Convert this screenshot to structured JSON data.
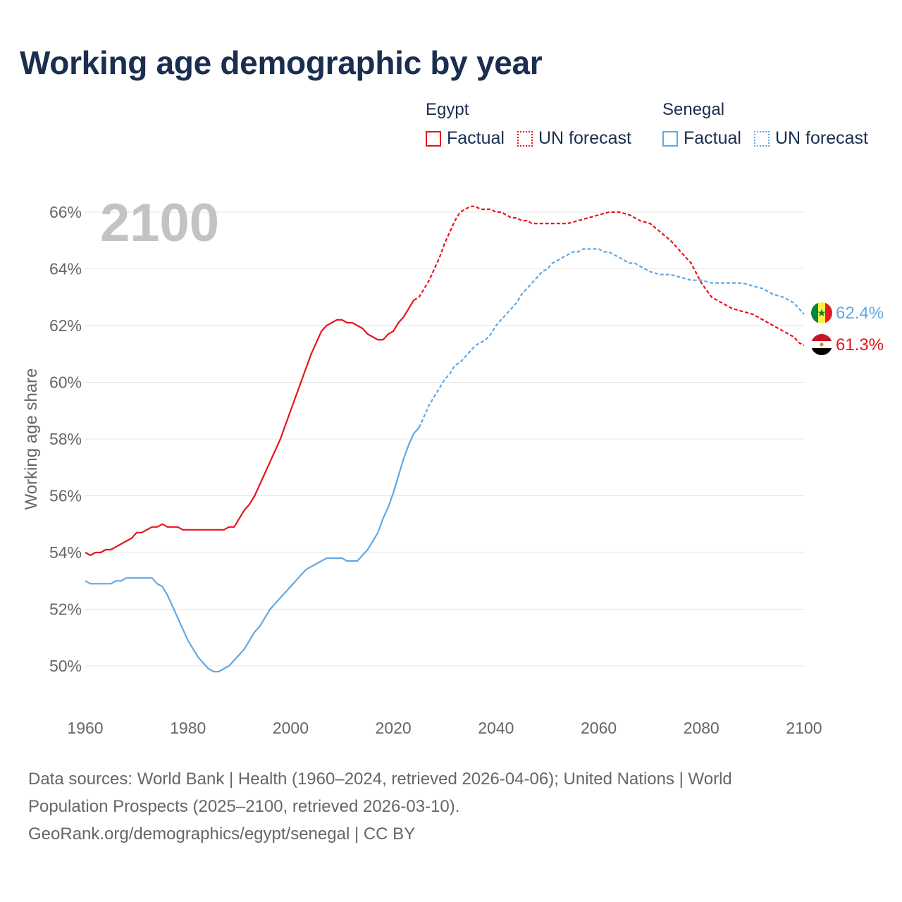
{
  "title": "Working age demographic by year",
  "legend": {
    "groups": [
      {
        "name": "Egypt",
        "color": "#e8141c",
        "factual_label": "Factual",
        "forecast_label": "UN forecast"
      },
      {
        "name": "Senegal",
        "color": "#62a8e5",
        "factual_label": "Factual",
        "forecast_label": "UN forecast"
      }
    ]
  },
  "year_watermark": "2100",
  "end_labels": {
    "egypt": "61.3%",
    "senegal": "62.4%"
  },
  "flags": {
    "egypt": "egypt-flag-icon",
    "senegal": "senegal-flag-icon"
  },
  "source": {
    "line1": "Data sources: World Bank | Health (1960–2024, retrieved 2026-04-06); United Nations | World",
    "line2": "Population Prospects (2025–2100, retrieved 2026-03-10).",
    "line3": "GeoRank.org/demographics/egypt/senegal | CC BY"
  },
  "chart_data": {
    "type": "line",
    "title": "Working age demographic by year",
    "xlabel": "",
    "ylabel": "Working age share",
    "xlim": [
      1960,
      2100
    ],
    "ylim": [
      49,
      67
    ],
    "x_ticks": [
      1960,
      1980,
      2000,
      2020,
      2040,
      2060,
      2080,
      2100
    ],
    "y_ticks": [
      50,
      52,
      54,
      56,
      58,
      60,
      62,
      64,
      66
    ],
    "y_tick_labels": [
      "50%",
      "52%",
      "54%",
      "56%",
      "58%",
      "60%",
      "62%",
      "64%",
      "66%"
    ],
    "grid": true,
    "series": [
      {
        "name": "Egypt",
        "kind": "Factual",
        "color": "#e8141c",
        "dash": "solid",
        "points": [
          [
            1960,
            54.0
          ],
          [
            1961,
            53.9
          ],
          [
            1962,
            54.0
          ],
          [
            1963,
            54.0
          ],
          [
            1964,
            54.1
          ],
          [
            1965,
            54.1
          ],
          [
            1966,
            54.2
          ],
          [
            1967,
            54.3
          ],
          [
            1968,
            54.4
          ],
          [
            1969,
            54.5
          ],
          [
            1970,
            54.7
          ],
          [
            1971,
            54.7
          ],
          [
            1972,
            54.8
          ],
          [
            1973,
            54.9
          ],
          [
            1974,
            54.9
          ],
          [
            1975,
            55.0
          ],
          [
            1976,
            54.9
          ],
          [
            1977,
            54.9
          ],
          [
            1978,
            54.9
          ],
          [
            1979,
            54.8
          ],
          [
            1980,
            54.8
          ],
          [
            1981,
            54.8
          ],
          [
            1982,
            54.8
          ],
          [
            1983,
            54.8
          ],
          [
            1984,
            54.8
          ],
          [
            1985,
            54.8
          ],
          [
            1986,
            54.8
          ],
          [
            1987,
            54.8
          ],
          [
            1988,
            54.9
          ],
          [
            1989,
            54.9
          ],
          [
            1990,
            55.2
          ],
          [
            1991,
            55.5
          ],
          [
            1992,
            55.7
          ],
          [
            1993,
            56.0
          ],
          [
            1994,
            56.4
          ],
          [
            1995,
            56.8
          ],
          [
            1996,
            57.2
          ],
          [
            1997,
            57.6
          ],
          [
            1998,
            58.0
          ],
          [
            1999,
            58.5
          ],
          [
            2000,
            59.0
          ],
          [
            2001,
            59.5
          ],
          [
            2002,
            60.0
          ],
          [
            2003,
            60.5
          ],
          [
            2004,
            61.0
          ],
          [
            2005,
            61.4
          ],
          [
            2006,
            61.8
          ],
          [
            2007,
            62.0
          ],
          [
            2008,
            62.1
          ],
          [
            2009,
            62.2
          ],
          [
            2010,
            62.2
          ],
          [
            2011,
            62.1
          ],
          [
            2012,
            62.1
          ],
          [
            2013,
            62.0
          ],
          [
            2014,
            61.9
          ],
          [
            2015,
            61.7
          ],
          [
            2016,
            61.6
          ],
          [
            2017,
            61.5
          ],
          [
            2018,
            61.5
          ],
          [
            2019,
            61.7
          ],
          [
            2020,
            61.8
          ],
          [
            2021,
            62.1
          ],
          [
            2022,
            62.3
          ],
          [
            2023,
            62.6
          ],
          [
            2024,
            62.9
          ]
        ]
      },
      {
        "name": "Egypt",
        "kind": "UN forecast",
        "color": "#e8141c",
        "dash": "dashed",
        "points": [
          [
            2024,
            62.9
          ],
          [
            2025,
            63.0
          ],
          [
            2026,
            63.3
          ],
          [
            2027,
            63.6
          ],
          [
            2028,
            64.0
          ],
          [
            2029,
            64.4
          ],
          [
            2030,
            64.9
          ],
          [
            2031,
            65.3
          ],
          [
            2032,
            65.7
          ],
          [
            2033,
            66.0
          ],
          [
            2034,
            66.1
          ],
          [
            2035,
            66.2
          ],
          [
            2036,
            66.2
          ],
          [
            2037,
            66.1
          ],
          [
            2038,
            66.1
          ],
          [
            2039,
            66.1
          ],
          [
            2040,
            66.0
          ],
          [
            2041,
            66.0
          ],
          [
            2042,
            65.9
          ],
          [
            2043,
            65.8
          ],
          [
            2044,
            65.8
          ],
          [
            2045,
            65.7
          ],
          [
            2046,
            65.7
          ],
          [
            2047,
            65.6
          ],
          [
            2048,
            65.6
          ],
          [
            2050,
            65.6
          ],
          [
            2052,
            65.6
          ],
          [
            2054,
            65.6
          ],
          [
            2056,
            65.7
          ],
          [
            2058,
            65.8
          ],
          [
            2060,
            65.9
          ],
          [
            2062,
            66.0
          ],
          [
            2064,
            66.0
          ],
          [
            2066,
            65.9
          ],
          [
            2068,
            65.7
          ],
          [
            2070,
            65.6
          ],
          [
            2072,
            65.3
          ],
          [
            2074,
            65.0
          ],
          [
            2076,
            64.6
          ],
          [
            2078,
            64.2
          ],
          [
            2080,
            63.5
          ],
          [
            2082,
            63.0
          ],
          [
            2084,
            62.8
          ],
          [
            2086,
            62.6
          ],
          [
            2088,
            62.5
          ],
          [
            2090,
            62.4
          ],
          [
            2092,
            62.2
          ],
          [
            2094,
            62.0
          ],
          [
            2096,
            61.8
          ],
          [
            2098,
            61.6
          ],
          [
            2099,
            61.4
          ],
          [
            2100,
            61.3
          ]
        ]
      },
      {
        "name": "Senegal",
        "kind": "Factual",
        "color": "#62a8e5",
        "dash": "solid",
        "points": [
          [
            1960,
            53.0
          ],
          [
            1961,
            52.9
          ],
          [
            1962,
            52.9
          ],
          [
            1963,
            52.9
          ],
          [
            1964,
            52.9
          ],
          [
            1965,
            52.9
          ],
          [
            1966,
            53.0
          ],
          [
            1967,
            53.0
          ],
          [
            1968,
            53.1
          ],
          [
            1969,
            53.1
          ],
          [
            1970,
            53.1
          ],
          [
            1971,
            53.1
          ],
          [
            1972,
            53.1
          ],
          [
            1973,
            53.1
          ],
          [
            1974,
            52.9
          ],
          [
            1975,
            52.8
          ],
          [
            1976,
            52.5
          ],
          [
            1977,
            52.1
          ],
          [
            1978,
            51.7
          ],
          [
            1979,
            51.3
          ],
          [
            1980,
            50.9
          ],
          [
            1981,
            50.6
          ],
          [
            1982,
            50.3
          ],
          [
            1983,
            50.1
          ],
          [
            1984,
            49.9
          ],
          [
            1985,
            49.8
          ],
          [
            1986,
            49.8
          ],
          [
            1987,
            49.9
          ],
          [
            1988,
            50.0
          ],
          [
            1989,
            50.2
          ],
          [
            1990,
            50.4
          ],
          [
            1991,
            50.6
          ],
          [
            1992,
            50.9
          ],
          [
            1993,
            51.2
          ],
          [
            1994,
            51.4
          ],
          [
            1995,
            51.7
          ],
          [
            1996,
            52.0
          ],
          [
            1997,
            52.2
          ],
          [
            1998,
            52.4
          ],
          [
            1999,
            52.6
          ],
          [
            2000,
            52.8
          ],
          [
            2001,
            53.0
          ],
          [
            2002,
            53.2
          ],
          [
            2003,
            53.4
          ],
          [
            2004,
            53.5
          ],
          [
            2005,
            53.6
          ],
          [
            2006,
            53.7
          ],
          [
            2007,
            53.8
          ],
          [
            2008,
            53.8
          ],
          [
            2009,
            53.8
          ],
          [
            2010,
            53.8
          ],
          [
            2011,
            53.7
          ],
          [
            2012,
            53.7
          ],
          [
            2013,
            53.7
          ],
          [
            2014,
            53.9
          ],
          [
            2015,
            54.1
          ],
          [
            2016,
            54.4
          ],
          [
            2017,
            54.7
          ],
          [
            2018,
            55.2
          ],
          [
            2019,
            55.6
          ],
          [
            2020,
            56.1
          ],
          [
            2021,
            56.7
          ],
          [
            2022,
            57.3
          ],
          [
            2023,
            57.8
          ],
          [
            2024,
            58.2
          ],
          [
            2025,
            58.4
          ]
        ]
      },
      {
        "name": "Senegal",
        "kind": "UN forecast",
        "color": "#62a8e5",
        "dash": "dashed",
        "points": [
          [
            2025,
            58.4
          ],
          [
            2026,
            58.8
          ],
          [
            2027,
            59.2
          ],
          [
            2028,
            59.5
          ],
          [
            2029,
            59.8
          ],
          [
            2030,
            60.1
          ],
          [
            2031,
            60.3
          ],
          [
            2032,
            60.6
          ],
          [
            2033,
            60.7
          ],
          [
            2034,
            60.9
          ],
          [
            2035,
            61.1
          ],
          [
            2036,
            61.3
          ],
          [
            2037,
            61.4
          ],
          [
            2038,
            61.5
          ],
          [
            2039,
            61.7
          ],
          [
            2040,
            62.0
          ],
          [
            2041,
            62.2
          ],
          [
            2042,
            62.4
          ],
          [
            2043,
            62.6
          ],
          [
            2044,
            62.8
          ],
          [
            2045,
            63.1
          ],
          [
            2046,
            63.3
          ],
          [
            2047,
            63.5
          ],
          [
            2048,
            63.7
          ],
          [
            2049,
            63.9
          ],
          [
            2050,
            64.0
          ],
          [
            2051,
            64.2
          ],
          [
            2052,
            64.3
          ],
          [
            2053,
            64.4
          ],
          [
            2054,
            64.5
          ],
          [
            2055,
            64.6
          ],
          [
            2056,
            64.6
          ],
          [
            2057,
            64.7
          ],
          [
            2058,
            64.7
          ],
          [
            2059,
            64.7
          ],
          [
            2060,
            64.7
          ],
          [
            2061,
            64.6
          ],
          [
            2062,
            64.6
          ],
          [
            2063,
            64.5
          ],
          [
            2064,
            64.4
          ],
          [
            2065,
            64.3
          ],
          [
            2066,
            64.2
          ],
          [
            2067,
            64.2
          ],
          [
            2068,
            64.1
          ],
          [
            2069,
            64.0
          ],
          [
            2070,
            63.9
          ],
          [
            2072,
            63.8
          ],
          [
            2074,
            63.8
          ],
          [
            2076,
            63.7
          ],
          [
            2078,
            63.6
          ],
          [
            2080,
            63.6
          ],
          [
            2082,
            63.5
          ],
          [
            2084,
            63.5
          ],
          [
            2086,
            63.5
          ],
          [
            2088,
            63.5
          ],
          [
            2090,
            63.4
          ],
          [
            2092,
            63.3
          ],
          [
            2094,
            63.1
          ],
          [
            2096,
            63.0
          ],
          [
            2098,
            62.8
          ],
          [
            2099,
            62.6
          ],
          [
            2100,
            62.4
          ]
        ]
      }
    ]
  }
}
